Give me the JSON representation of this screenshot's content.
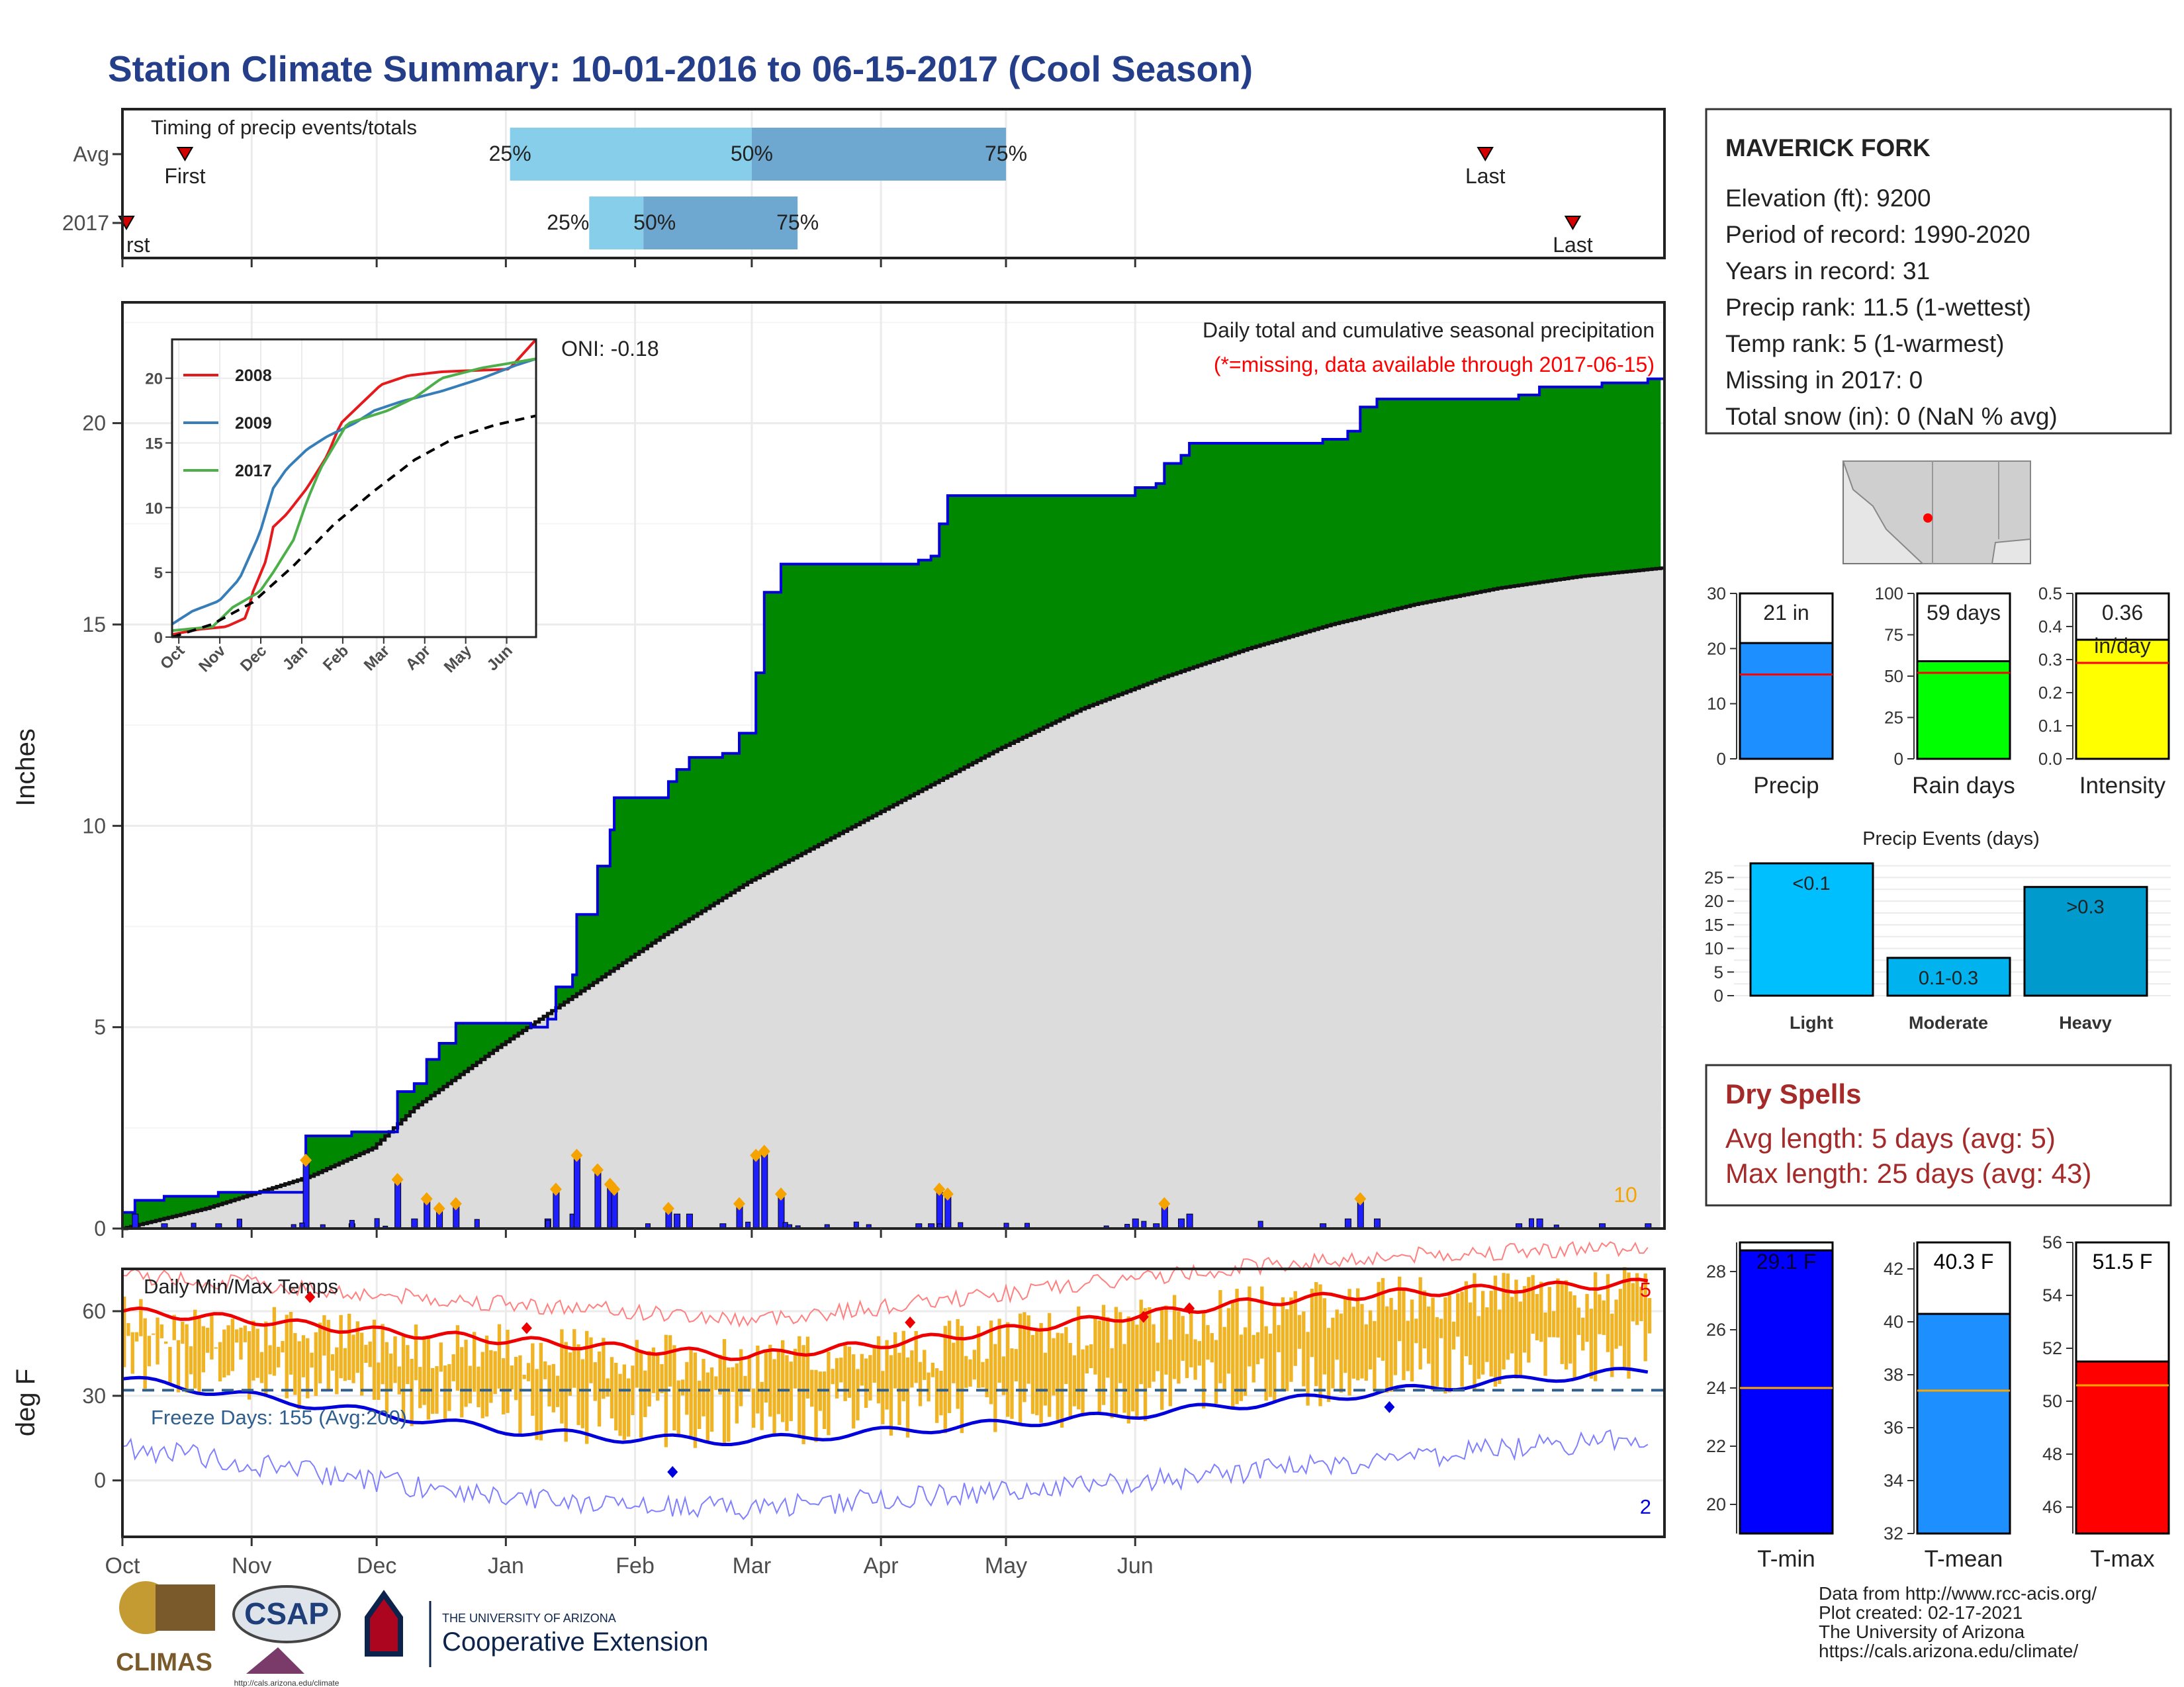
{
  "page": {
    "title": "Station Climate Summary: 10-01-2016 to 06-15-2017 (Cool Season)",
    "title_color": "#253e8a"
  },
  "timing_panel": {
    "label": "Timing of precip events/totals",
    "rows": [
      "Avg",
      "2017"
    ],
    "first_label": "First",
    "last_label": "Last",
    "first_label_2017_visible": "rst",
    "pct_labels": [
      "25%",
      "50%",
      "75%"
    ],
    "avg": {
      "first": 15,
      "p25": 93,
      "p50": 151,
      "p75": 212,
      "last": 327
    },
    "y2017": {
      "first": -1,
      "p25": 112,
      "p50": 125,
      "p75": 162,
      "last": 348
    }
  },
  "precip_panel": {
    "ylabel": "Inches",
    "title": "Daily total and cumulative seasonal precipitation",
    "subtitle": "(*=missing, data available through 2017-06-15)",
    "oni_label": "ONI: -0.18",
    "count_label": "10",
    "colors": {
      "above": "#008800",
      "below": "#7f5307",
      "avg_fill": "#dcdcdc",
      "line": "#0000dd",
      "marker": "#f5a300"
    }
  },
  "inset": {
    "legend": [
      "2008",
      "2009",
      "2017"
    ],
    "colors": [
      "#e41a1c",
      "#377eb8",
      "#4daf4a"
    ],
    "month_labels": [
      "Oct",
      "Nov",
      "Dec",
      "Jan",
      "Feb",
      "Mar",
      "Apr",
      "May",
      "Jun"
    ]
  },
  "temp_panel": {
    "title": "Daily Min/Max Temps",
    "ylabel": "deg F",
    "freeze_label": "Freeze Days: 155 (Avg:200)",
    "max_count": "5",
    "min_count": "2"
  },
  "month_axis": [
    "Oct",
    "Nov",
    "Dec",
    "Jan",
    "Feb",
    "Mar",
    "Apr",
    "May",
    "Jun"
  ],
  "station": {
    "name": "MAVERICK FORK",
    "lines": [
      "Elevation (ft): 9200",
      "Period of record: 1990-2020",
      "Years in record: 31",
      "Precip rank: 11.5 (1-wettest)",
      "Temp rank: 5 (1-warmest)",
      "Missing in 2017: 0",
      "Total snow (in): 0 (NaN % avg)"
    ]
  },
  "summary_bars": [
    {
      "label": "Precip",
      "box": "21 in",
      "value": 21,
      "avg": 15.3,
      "max": 30,
      "ticks": [
        "0",
        "10",
        "20",
        "30"
      ],
      "color": "#1e8fff"
    },
    {
      "label": "Rain days",
      "box": "59 days",
      "value": 59,
      "avg": 52,
      "max": 100,
      "ticks": [
        "0",
        "25",
        "50",
        "75",
        "100"
      ],
      "color": "#00ff00"
    },
    {
      "label": "Intensity",
      "box": "0.36",
      "box2": "in/day",
      "value": 0.36,
      "avg": 0.29,
      "max": 0.5,
      "ticks": [
        "0.0",
        "0.1",
        "0.2",
        "0.3",
        "0.4",
        "0.5"
      ],
      "color": "#ffff00"
    }
  ],
  "events": {
    "title": "Precip Events (days)",
    "categories": [
      "Light",
      "Moderate",
      "Heavy"
    ],
    "values": [
      28,
      8,
      23
    ],
    "bar_labels": [
      "<0.1",
      "0.1-0.3",
      ">0.3"
    ],
    "colors": [
      "#00bfff",
      "#00b2ee",
      "#009acd"
    ],
    "ticks": [
      "0",
      "5",
      "10",
      "15",
      "20",
      "25"
    ]
  },
  "dry_spells": {
    "title": "Dry Spells",
    "avg_line": "Avg length: 5 days (avg: 5)",
    "max_line": "Max length: 25 days (avg: 43)",
    "color": "#a52a2a"
  },
  "temp_bars": [
    {
      "label": "T-min",
      "box": "29.1 F",
      "value": 29.1,
      "avg": 24.0,
      "min": 19,
      "max": 29,
      "ticks": [
        "20",
        "22",
        "24",
        "26",
        "28"
      ],
      "color": "#0000ff"
    },
    {
      "label": "T-mean",
      "box": "40.3 F",
      "value": 40.3,
      "avg": 37.4,
      "min": 32,
      "max": 43,
      "ticks": [
        "32",
        "34",
        "36",
        "38",
        "40",
        "42"
      ],
      "color": "#1e8fff"
    },
    {
      "label": "T-max",
      "box": "51.5 F",
      "value": 51.5,
      "avg": 50.6,
      "min": 45,
      "max": 56,
      "ticks": [
        "46",
        "48",
        "50",
        "52",
        "54",
        "56"
      ],
      "color": "#ff0000"
    }
  ],
  "footer": {
    "lines": [
      "Data from http://www.rcc-acis.org/",
      "Plot created: 02-17-2021",
      "The University of Arizona",
      "https://cals.arizona.edu/climate/"
    ]
  },
  "logos": {
    "climas": "CLIMAS",
    "csap": "CSAP",
    "csap_url": "http://cals.arizona.edu/climate",
    "ua_small": "THE UNIVERSITY OF ARIZONA",
    "ua_big": "Cooperative Extension"
  },
  "chart_data": [
    {
      "type": "area",
      "title": "Daily total and cumulative seasonal precipitation",
      "ylabel": "Inches",
      "ylim": [
        0,
        23
      ],
      "x_range": [
        "2016-10-01",
        "2017-06-15"
      ],
      "series": [
        {
          "name": "2017",
          "values": [
            [
              0,
              0.4
            ],
            [
              3,
              0.7
            ],
            [
              10,
              0.8
            ],
            [
              23,
              0.9
            ],
            [
              43,
              0.9
            ],
            [
              44,
              2.3
            ],
            [
              55,
              2.4
            ],
            [
              65,
              2.4
            ],
            [
              66,
              3.4
            ],
            [
              70,
              3.6
            ],
            [
              73,
              4.2
            ],
            [
              76,
              4.6
            ],
            [
              80,
              5.1
            ],
            [
              95,
              5.1
            ],
            [
              98,
              5.0
            ],
            [
              102,
              5.2
            ],
            [
              104,
              6.0
            ],
            [
              108,
              6.3
            ],
            [
              109,
              7.8
            ],
            [
              113,
              7.8
            ],
            [
              114,
              9.0
            ],
            [
              117,
              9.9
            ],
            [
              118,
              10.7
            ],
            [
              130,
              10.7
            ],
            [
              131,
              11.1
            ],
            [
              133,
              11.4
            ],
            [
              136,
              11.7
            ],
            [
              144,
              11.8
            ],
            [
              148,
              12.3
            ],
            [
              151,
              12.3
            ],
            [
              152,
              13.8
            ],
            [
              154,
              15.8
            ],
            [
              158,
              16.5
            ],
            [
              175,
              16.5
            ],
            [
              190,
              16.5
            ],
            [
              191,
              16.6
            ],
            [
              194,
              16.7
            ],
            [
              196,
              17.5
            ],
            [
              198,
              18.2
            ],
            [
              220,
              18.2
            ],
            [
              242,
              18.2
            ],
            [
              243,
              18.4
            ],
            [
              248,
              18.5
            ],
            [
              250,
              19.0
            ],
            [
              254,
              19.2
            ],
            [
              256,
              19.5
            ],
            [
              287,
              19.5
            ],
            [
              288,
              19.6
            ],
            [
              294,
              19.8
            ],
            [
              297,
              20.4
            ],
            [
              301,
              20.6
            ],
            [
              320,
              20.6
            ],
            [
              335,
              20.7
            ],
            [
              340,
              20.9
            ],
            [
              355,
              21.0
            ],
            [
              366,
              21.1
            ],
            [
              369,
              21.1
            ]
          ]
        }
      ]
    },
    {
      "type": "line",
      "title": "",
      "x": [
        "Oct",
        "Nov",
        "Dec",
        "Jan",
        "Feb",
        "Mar",
        "Apr",
        "May",
        "Jun"
      ],
      "series": [
        {
          "name": "2008",
          "values": [
            [
              0,
              0.2
            ],
            [
              20,
              0.6
            ],
            [
              40,
              0.8
            ],
            [
              55,
              1.5
            ],
            [
              60,
              3.5
            ],
            [
              70,
              6.0
            ],
            [
              75,
              8.5
            ],
            [
              85,
              9.5
            ],
            [
              100,
              11.5
            ],
            [
              115,
              14.0
            ],
            [
              125,
              16.5
            ],
            [
              140,
              18.0
            ],
            [
              155,
              19.5
            ],
            [
              175,
              20.2
            ],
            [
              200,
              20.5
            ],
            [
              225,
              20.6
            ],
            [
              250,
              20.7
            ],
            [
              270,
              23
            ]
          ]
        },
        {
          "name": "2009",
          "values": [
            [
              0,
              1.0
            ],
            [
              15,
              2.0
            ],
            [
              35,
              2.8
            ],
            [
              50,
              4.5
            ],
            [
              65,
              8.0
            ],
            [
              75,
              11.5
            ],
            [
              85,
              13.0
            ],
            [
              100,
              14.5
            ],
            [
              115,
              15.5
            ],
            [
              135,
              16.5
            ],
            [
              150,
              17.5
            ],
            [
              170,
              18.2
            ],
            [
              200,
              19.0
            ],
            [
              230,
              20.0
            ],
            [
              255,
              21.0
            ],
            [
              270,
              21.5
            ]
          ]
        },
        {
          "name": "2017",
          "values": [
            [
              0,
              0.5
            ],
            [
              30,
              0.8
            ],
            [
              45,
              2.3
            ],
            [
              65,
              3.5
            ],
            [
              75,
              5.0
            ],
            [
              90,
              7.5
            ],
            [
              100,
              10.5
            ],
            [
              110,
              13.0
            ],
            [
              130,
              16.5
            ],
            [
              160,
              17.5
            ],
            [
              180,
              18.5
            ],
            [
              200,
              20.0
            ],
            [
              230,
              20.8
            ],
            [
              270,
              21.5
            ]
          ]
        },
        {
          "name": "",
          "values": [
            [
              0,
              0
            ],
            [
              30,
              1.0
            ],
            [
              60,
              2.7
            ],
            [
              90,
              5.5
            ],
            [
              120,
              8.7
            ],
            [
              150,
              11.3
            ],
            [
              180,
              13.7
            ],
            [
              210,
              15.4
            ],
            [
              240,
              16.4
            ],
            [
              270,
              17.1
            ]
          ]
        }
      ]
    },
    {
      "type": "line",
      "title": "Daily Min/Max Temps",
      "ylabel": "deg F",
      "ylim": [
        -20,
        75
      ],
      "series": [
        {
          "name": "",
          "values": [
            [
              0,
              60
            ],
            [
              30,
              57
            ],
            [
              60,
              53
            ],
            [
              90,
              50
            ],
            [
              120,
              47
            ],
            [
              150,
              44
            ],
            [
              180,
              48
            ],
            [
              210,
              53
            ],
            [
              240,
              58
            ],
            [
              270,
              63
            ],
            [
              300,
              66
            ],
            [
              330,
              68
            ],
            [
              366,
              70
            ]
          ]
        },
        {
          "name": "",
          "values": [
            [
              0,
              36
            ],
            [
              30,
              30
            ],
            [
              60,
              24
            ],
            [
              90,
              18
            ],
            [
              120,
              15
            ],
            [
              150,
              14
            ],
            [
              180,
              17
            ],
            [
              210,
              20
            ],
            [
              240,
              23
            ],
            [
              270,
              27
            ],
            [
              300,
              31
            ],
            [
              330,
              35
            ],
            [
              366,
              39
            ]
          ]
        }
      ]
    },
    {
      "type": "bar",
      "categories": [
        "Precip",
        "Rain days",
        "Intensity"
      ],
      "values": [
        21,
        59,
        0.36
      ]
    },
    {
      "type": "bar",
      "title": "Precip Events (days)",
      "categories": [
        "Light",
        "Moderate",
        "Heavy"
      ],
      "values": [
        28,
        8,
        23
      ]
    },
    {
      "type": "bar",
      "categories": [
        "T-min",
        "T-mean",
        "T-max"
      ],
      "values": [
        29.1,
        40.3,
        51.5
      ]
    }
  ]
}
